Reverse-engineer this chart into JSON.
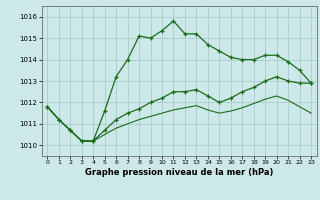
{
  "xlabel": "Graphe pression niveau de la mer (hPa)",
  "x_ticks": [
    0,
    1,
    2,
    3,
    4,
    5,
    6,
    7,
    8,
    9,
    10,
    11,
    12,
    13,
    14,
    15,
    16,
    17,
    18,
    19,
    20,
    21,
    22,
    23
  ],
  "ylim": [
    1009.5,
    1016.5
  ],
  "yticks": [
    1010,
    1011,
    1012,
    1013,
    1014,
    1015,
    1016
  ],
  "xlim": [
    -0.5,
    23.5
  ],
  "bg_color": "#cce8e8",
  "grid_color": "#aacccc",
  "line_color": "#1a6b1a",
  "line1_x": [
    0,
    1,
    2,
    3,
    4,
    5,
    6,
    7,
    8,
    9,
    10,
    11,
    12,
    13,
    14,
    15,
    16,
    17,
    18,
    19,
    20,
    21,
    22,
    23
  ],
  "line1_y": [
    1011.8,
    1011.2,
    1010.7,
    1010.2,
    1010.2,
    1011.6,
    1013.2,
    1014.0,
    1015.1,
    1015.0,
    1015.35,
    1015.8,
    1015.2,
    1015.2,
    1014.7,
    1014.4,
    1014.1,
    1014.0,
    1014.0,
    1014.2,
    1014.2,
    1013.9,
    1013.5,
    1012.9
  ],
  "line2_x": [
    0,
    1,
    2,
    3,
    4,
    5,
    6,
    7,
    8,
    9,
    10,
    11,
    12,
    13,
    14,
    15,
    16,
    17,
    18,
    19,
    20,
    21,
    22,
    23
  ],
  "line2_y": [
    1011.8,
    1011.2,
    1010.7,
    1010.2,
    1010.2,
    1010.7,
    1011.2,
    1011.5,
    1011.7,
    1012.0,
    1012.2,
    1012.5,
    1012.5,
    1012.6,
    1012.3,
    1012.0,
    1012.2,
    1012.5,
    1012.7,
    1013.0,
    1013.2,
    1013.0,
    1012.9,
    1012.9
  ],
  "line3_x": [
    0,
    1,
    2,
    3,
    4,
    5,
    6,
    7,
    8,
    9,
    10,
    11,
    12,
    13,
    14,
    15,
    16,
    17,
    18,
    19,
    20,
    21,
    22,
    23
  ],
  "line3_y": [
    1011.8,
    1011.2,
    1010.7,
    1010.2,
    1010.2,
    1010.5,
    1010.8,
    1011.0,
    1011.2,
    1011.35,
    1011.5,
    1011.65,
    1011.75,
    1011.85,
    1011.65,
    1011.5,
    1011.6,
    1011.75,
    1011.95,
    1012.15,
    1012.3,
    1012.1,
    1011.8,
    1011.5
  ]
}
